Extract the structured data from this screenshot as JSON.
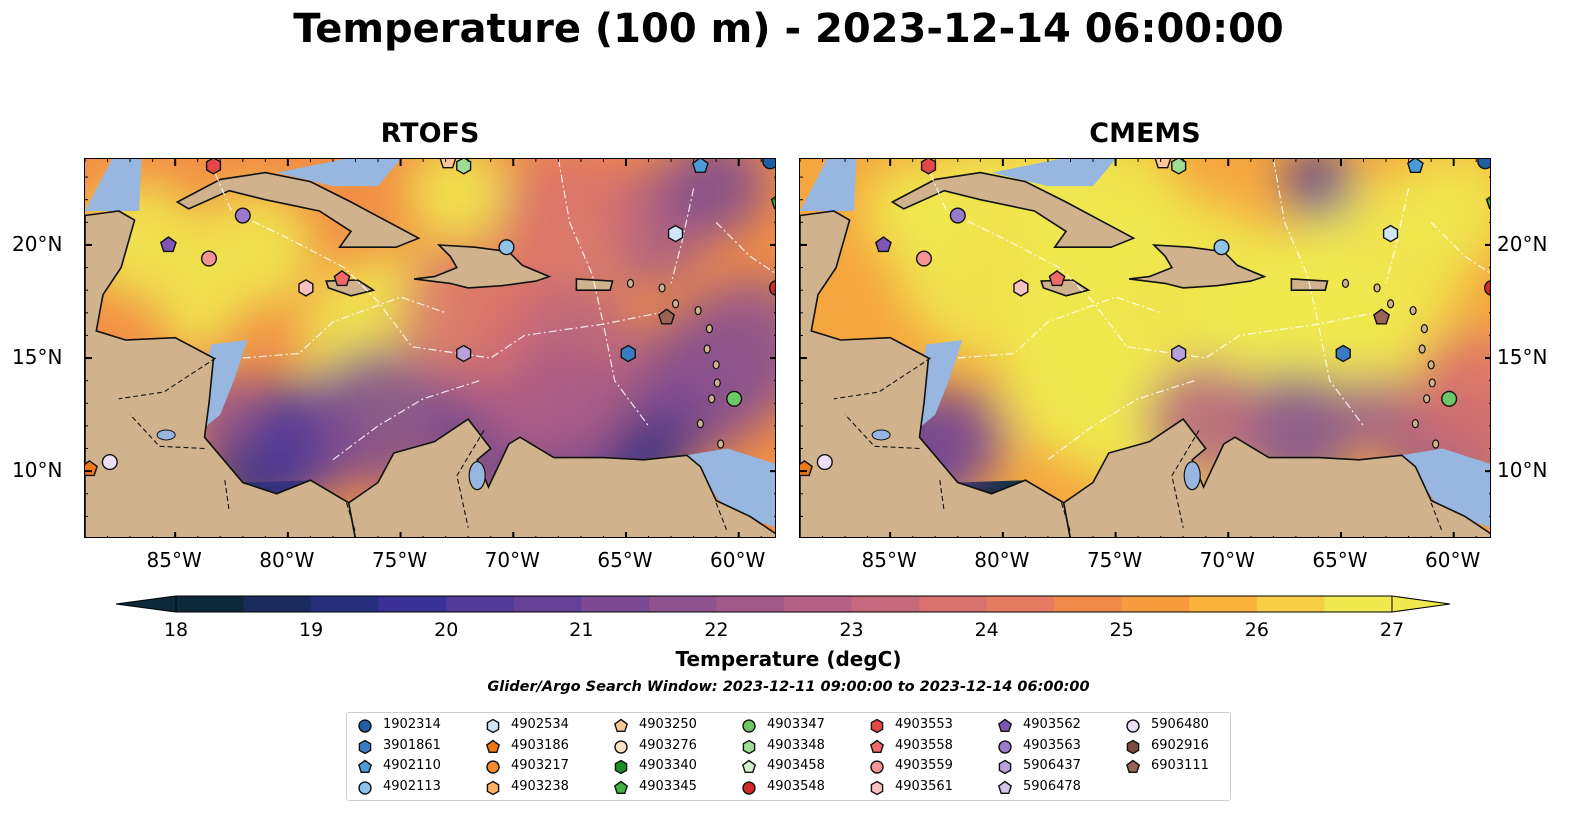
{
  "title": "Temperature (100 m) - 2023-12-14 06:00:00",
  "panels": [
    {
      "title": "RTOFS"
    },
    {
      "title": "CMEMS"
    }
  ],
  "axes": {
    "lon_labels": [
      "85°W",
      "80°W",
      "75°W",
      "70°W",
      "65°W",
      "60°W"
    ],
    "lon_values": [
      -85,
      -80,
      -75,
      -70,
      -65,
      -60
    ],
    "lat_labels": [
      "20°N",
      "15°N",
      "10°N"
    ],
    "lat_values": [
      20,
      15,
      10
    ],
    "lon_range": [
      -89,
      -58.3
    ],
    "lat_range": [
      7,
      23.8
    ]
  },
  "colorbar": {
    "label": "Temperature (degC)",
    "ticks": [
      "18",
      "19",
      "20",
      "21",
      "22",
      "23",
      "24",
      "25",
      "26",
      "27"
    ],
    "range": [
      18,
      27
    ],
    "extend": "both",
    "colors": [
      "#0d2a3d",
      "#1a2c5e",
      "#27307f",
      "#3a3196",
      "#503a9a",
      "#663f97",
      "#7b4a93",
      "#8e538e",
      "#a05a89",
      "#b46284",
      "#c6697c",
      "#d8726f",
      "#e67c5f",
      "#f08a4b",
      "#f79c3d",
      "#fbb33b",
      "#f8cf44",
      "#f0e94f"
    ]
  },
  "search_window": "Glider/Argo Search Window: 2023-12-11 09:00:00 to 2023-12-14 06:00:00",
  "legend": [
    {
      "id": "1902314",
      "marker": "circle",
      "color": "#1f5fa6"
    },
    {
      "id": "3901861",
      "marker": "hexagon",
      "color": "#3a7cc4"
    },
    {
      "id": "4902110",
      "marker": "pentagon",
      "color": "#4b9bd6"
    },
    {
      "id": "4902113",
      "marker": "circle",
      "color": "#8fc3ea"
    },
    {
      "id": "4902534",
      "marker": "hexagon",
      "color": "#cfe6f8"
    },
    {
      "id": "4903186",
      "marker": "pentagon",
      "color": "#f07814"
    },
    {
      "id": "4903217",
      "marker": "circle",
      "color": "#f58b2a"
    },
    {
      "id": "4903238",
      "marker": "hexagon",
      "color": "#fbb064"
    },
    {
      "id": "4903250",
      "marker": "pentagon",
      "color": "#fcc898"
    },
    {
      "id": "4903276",
      "marker": "circle",
      "color": "#fde1c6"
    },
    {
      "id": "4903340",
      "marker": "hexagon",
      "color": "#1d8f23"
    },
    {
      "id": "4903345",
      "marker": "pentagon",
      "color": "#3fb241"
    },
    {
      "id": "4903347",
      "marker": "circle",
      "color": "#6cc766"
    },
    {
      "id": "4903348",
      "marker": "hexagon",
      "color": "#9fdd97"
    },
    {
      "id": "4903458",
      "marker": "pentagon",
      "color": "#d2f1cb"
    },
    {
      "id": "4903548",
      "marker": "circle",
      "color": "#d12a2a"
    },
    {
      "id": "4903553",
      "marker": "hexagon",
      "color": "#e34848"
    },
    {
      "id": "4903558",
      "marker": "pentagon",
      "color": "#ee6a6a"
    },
    {
      "id": "4903559",
      "marker": "circle",
      "color": "#f59494"
    },
    {
      "id": "4903561",
      "marker": "hexagon",
      "color": "#f9c2c2"
    },
    {
      "id": "4903562",
      "marker": "pentagon",
      "color": "#7e56b5"
    },
    {
      "id": "4903563",
      "marker": "circle",
      "color": "#9a7acb"
    },
    {
      "id": "5906437",
      "marker": "hexagon",
      "color": "#b9a1dd"
    },
    {
      "id": "5906478",
      "marker": "pentagon",
      "color": "#d4c5ee"
    },
    {
      "id": "5906480",
      "marker": "circle",
      "color": "#ecdff8"
    },
    {
      "id": "6902916",
      "marker": "hexagon",
      "color": "#7a4a3c"
    },
    {
      "id": "6903111",
      "marker": "pentagon",
      "color": "#9a6353"
    }
  ],
  "floats_on_map": [
    {
      "id": "4903553",
      "lon": -83.3,
      "lat": 23.5
    },
    {
      "id": "4903250",
      "lon": -72.9,
      "lat": 23.7
    },
    {
      "id": "4903348",
      "lon": -72.2,
      "lat": 23.5
    },
    {
      "id": "4902110",
      "lon": -61.7,
      "lat": 23.5
    },
    {
      "id": "1902314",
      "lon": -58.6,
      "lat": 23.7
    },
    {
      "id": "4903345",
      "lon": -58.2,
      "lat": 21.9
    },
    {
      "id": "4903563",
      "lon": -82.0,
      "lat": 21.3
    },
    {
      "id": "4903562",
      "lon": -85.3,
      "lat": 20.0
    },
    {
      "id": "4903559",
      "lon": -83.5,
      "lat": 19.4
    },
    {
      "id": "4902113",
      "lon": -70.3,
      "lat": 19.9
    },
    {
      "id": "4902534",
      "lon": -62.8,
      "lat": 20.5
    },
    {
      "id": "4903558",
      "lon": -77.6,
      "lat": 18.5
    },
    {
      "id": "4903561",
      "lon": -79.2,
      "lat": 18.1
    },
    {
      "id": "4903548",
      "lon": -58.3,
      "lat": 18.1
    },
    {
      "id": "6903111",
      "lon": -63.2,
      "lat": 16.8
    },
    {
      "id": "5906437",
      "lon": -72.2,
      "lat": 15.2
    },
    {
      "id": "3901861",
      "lon": -64.9,
      "lat": 15.2
    },
    {
      "id": "4903347",
      "lon": -60.2,
      "lat": 13.2
    },
    {
      "id": "4903186",
      "lon": -88.8,
      "lat": 10.1
    },
    {
      "id": "5906480",
      "lon": -87.9,
      "lat": 10.4
    }
  ]
}
